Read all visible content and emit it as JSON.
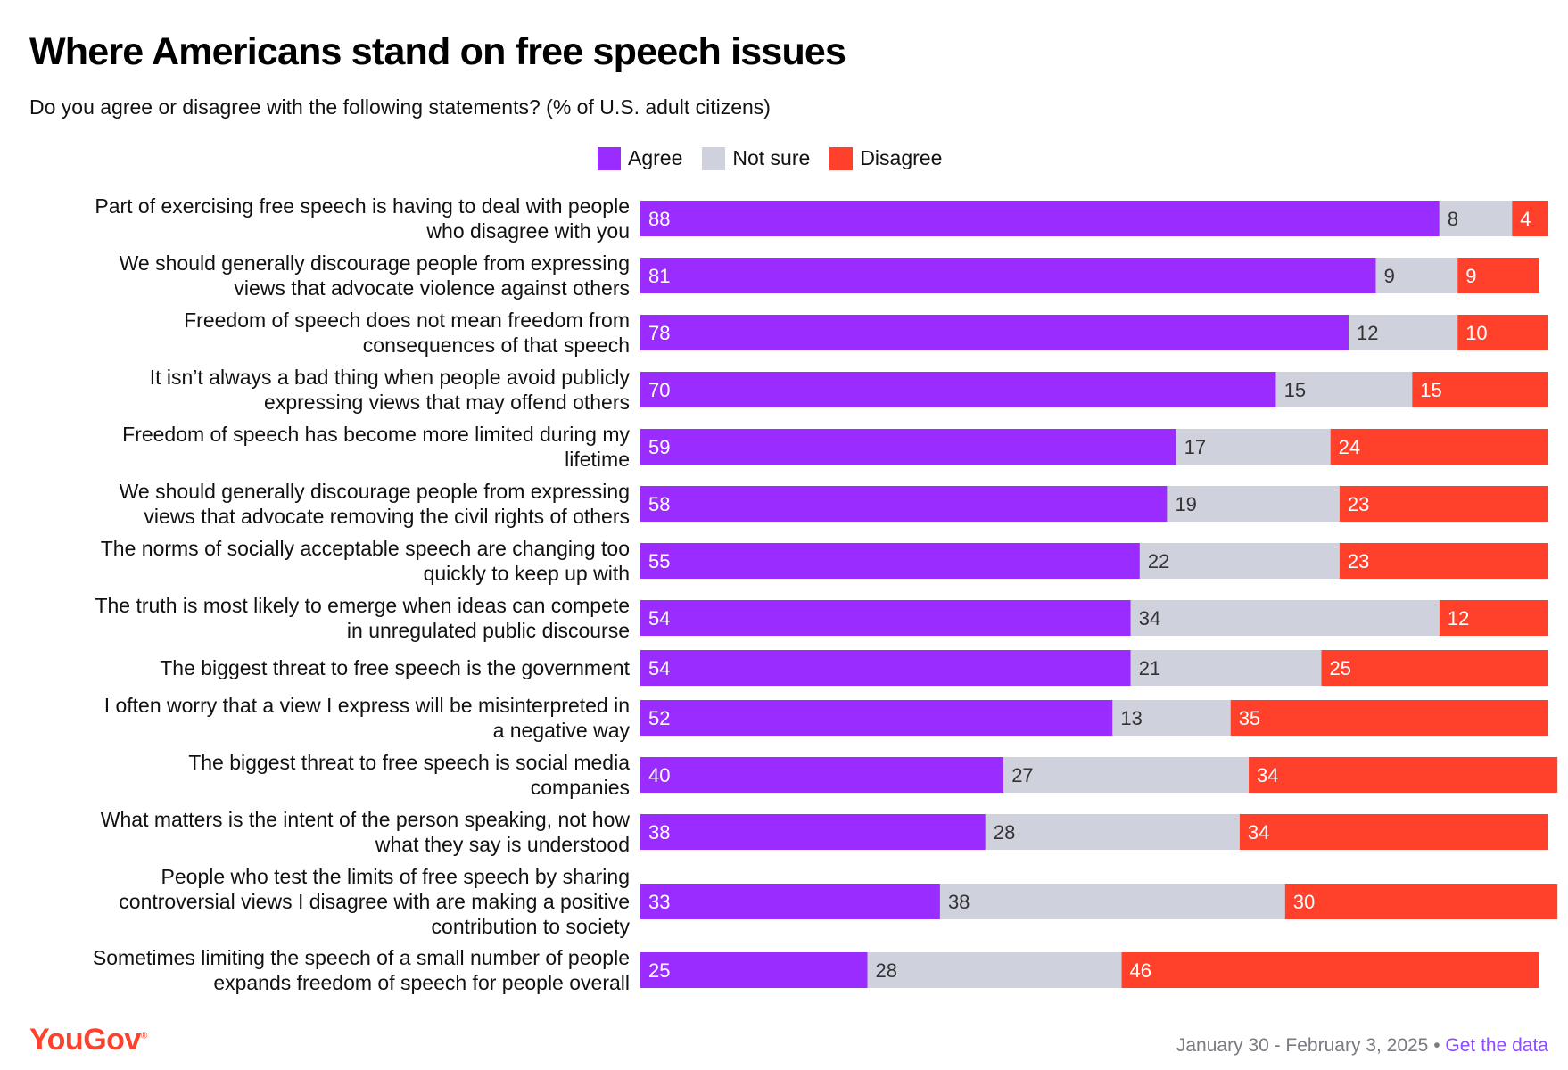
{
  "header": {
    "title": "Where Americans stand on free speech issues",
    "subtitle": "Do you agree or disagree with the following statements? (% of U.S. adult citizens)"
  },
  "legend": {
    "agree": "Agree",
    "not_sure": "Not sure",
    "disagree": "Disagree"
  },
  "colors": {
    "agree": "#9b2cff",
    "not_sure": "#cfd2dd",
    "disagree": "#ff412c"
  },
  "footer": {
    "logo": "YouGov",
    "dates": "January 30 - February 3, 2025",
    "separator": "•",
    "link": "Get the data"
  },
  "chart_data": {
    "type": "bar",
    "orientation": "horizontal",
    "stacked": true,
    "title": "Where Americans stand on free speech issues",
    "subtitle": "Do you agree or disagree with the following statements? (% of U.S. adult citizens)",
    "legend_position": "top",
    "grid": false,
    "xlim": [
      0,
      100
    ],
    "categories": [
      [
        "Part of exercising free speech is having to deal with people",
        "who disagree with you"
      ],
      [
        "We should generally discourage people from expressing",
        "views that advocate violence against others"
      ],
      [
        "Freedom of speech does not mean freedom from",
        "consequences of that speech"
      ],
      [
        "It isn’t always a bad thing when people avoid publicly",
        "expressing views that may offend others"
      ],
      [
        "Freedom of speech has become more limited during my",
        "lifetime"
      ],
      [
        "We should generally discourage people from expressing",
        "views that advocate removing the civil rights of others"
      ],
      [
        "The norms of socially acceptable speech are changing too",
        "quickly to keep up with"
      ],
      [
        "The truth is most likely to emerge when ideas can compete",
        "in unregulated public discourse"
      ],
      [
        "The biggest threat to free speech is the government"
      ],
      [
        "I often worry that a view I express will be misinterpreted in",
        "a negative way"
      ],
      [
        "The biggest threat to free speech is social media",
        "companies"
      ],
      [
        "What matters is the intent of the person speaking, not how",
        "what they say is understood"
      ],
      [
        "People who test the limits of free speech by sharing",
        "controversial views I disagree with are making a positive",
        "contribution to society"
      ],
      [
        "Sometimes limiting the speech of a small number of people",
        "expands freedom of speech for people overall"
      ]
    ],
    "series": [
      {
        "name": "Agree",
        "color": "#9b2cff",
        "values": [
          88,
          81,
          78,
          70,
          59,
          58,
          55,
          54,
          54,
          52,
          40,
          38,
          33,
          25
        ]
      },
      {
        "name": "Not sure",
        "color": "#cfd2dd",
        "values": [
          8,
          9,
          12,
          15,
          17,
          19,
          22,
          34,
          21,
          13,
          27,
          28,
          38,
          28
        ]
      },
      {
        "name": "Disagree",
        "color": "#ff412c",
        "values": [
          4,
          9,
          10,
          15,
          24,
          23,
          23,
          12,
          25,
          35,
          34,
          34,
          30,
          46
        ]
      }
    ]
  }
}
